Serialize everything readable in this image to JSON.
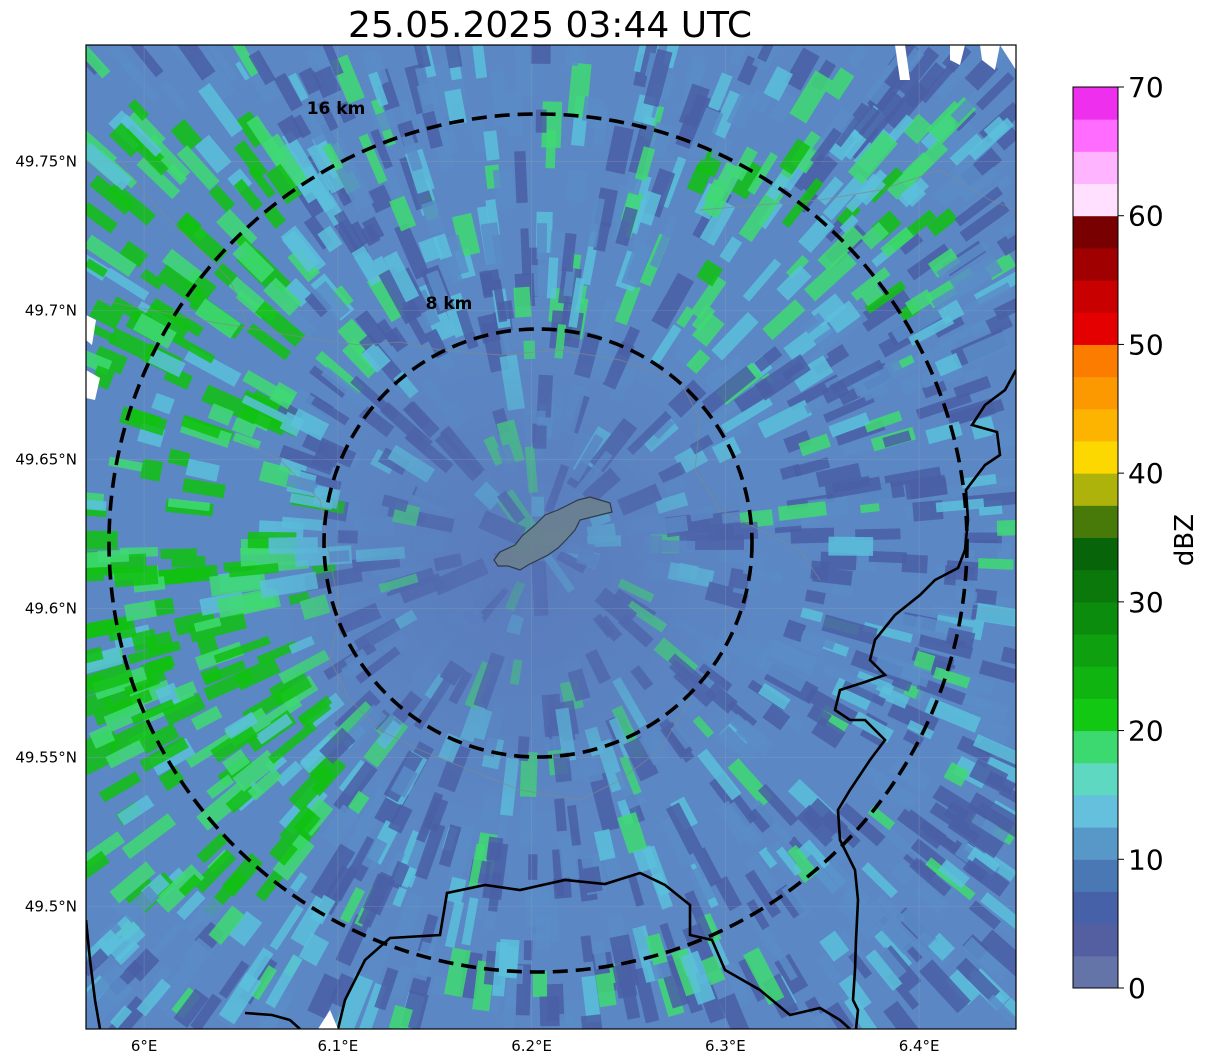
{
  "title": "25.05.2025 03:44 UTC",
  "map": {
    "projection": "lat-lon",
    "lon_range": [
      5.97,
      6.45
    ],
    "lat_range": [
      49.459,
      49.789
    ],
    "x_ticks": [
      {
        "value": 6.0,
        "label": "6°E"
      },
      {
        "value": 6.1,
        "label": "6.1°E"
      },
      {
        "value": 6.2,
        "label": "6.2°E"
      },
      {
        "value": 6.3,
        "label": "6.3°E"
      },
      {
        "value": 6.4,
        "label": "6.4°E"
      }
    ],
    "y_ticks": [
      {
        "value": 49.75,
        "label": "49.75°N"
      },
      {
        "value": 49.7,
        "label": "49.7°N"
      },
      {
        "value": 49.65,
        "label": "49.65°N"
      },
      {
        "value": 49.6,
        "label": "49.6°N"
      },
      {
        "value": 49.55,
        "label": "49.55°N"
      },
      {
        "value": 49.5,
        "label": "49.5°N"
      }
    ],
    "grid": true,
    "radar_center": {
      "lon": 6.203,
      "lat": 49.622
    },
    "range_rings": [
      {
        "label": "8 km",
        "radius_km": 8
      },
      {
        "label": "16 km",
        "radius_km": 16
      }
    ],
    "field": "radar reflectivity",
    "colors": {
      "strong_echo": "#11c111",
      "moderate_echo": "#3fd973",
      "weak_echo": "#5cc0dc",
      "very_weak_echo": "#4a5fa6",
      "highlight_area": "#6b8090"
    }
  },
  "colorbar": {
    "label": "dBZ",
    "min": 0,
    "max": 70,
    "tick_values": [
      0,
      10,
      20,
      30,
      40,
      50,
      60,
      70
    ],
    "tick_labels": [
      "0",
      "10",
      "20",
      "30",
      "40",
      "50",
      "60",
      "70"
    ],
    "colors": [
      "#6474a8",
      "#535fa0",
      "#4661a8",
      "#4a78b4",
      "#5898c8",
      "#64c0dc",
      "#5ed8c0",
      "#3cd870",
      "#12c812",
      "#10b410",
      "#0ea00e",
      "#0c8c0c",
      "#0a780a",
      "#086408",
      "#487a0a",
      "#adb30a",
      "#fcd800",
      "#fcb400",
      "#fc9800",
      "#fc7c00",
      "#e40000",
      "#c80000",
      "#a00000",
      "#780000",
      "#ffe0ff",
      "#ffb4ff",
      "#ff6cff",
      "#ee30ee"
    ]
  },
  "chart_data": {
    "type": "heatmap",
    "title": "25.05.2025 03:44 UTC",
    "x_ticks": [
      "6°E",
      "6.1°E",
      "6.2°E",
      "6.3°E",
      "6.4°E"
    ],
    "y_ticks": [
      "49.75°N",
      "49.7°N",
      "49.65°N",
      "49.6°N",
      "49.55°N",
      "49.5°N"
    ],
    "colorbar": {
      "label": "dBZ",
      "range": [
        0,
        70
      ],
      "ticks": [
        0,
        10,
        20,
        30,
        40,
        50,
        60,
        70
      ]
    },
    "annotations": [
      "8 km",
      "16 km"
    ]
  }
}
